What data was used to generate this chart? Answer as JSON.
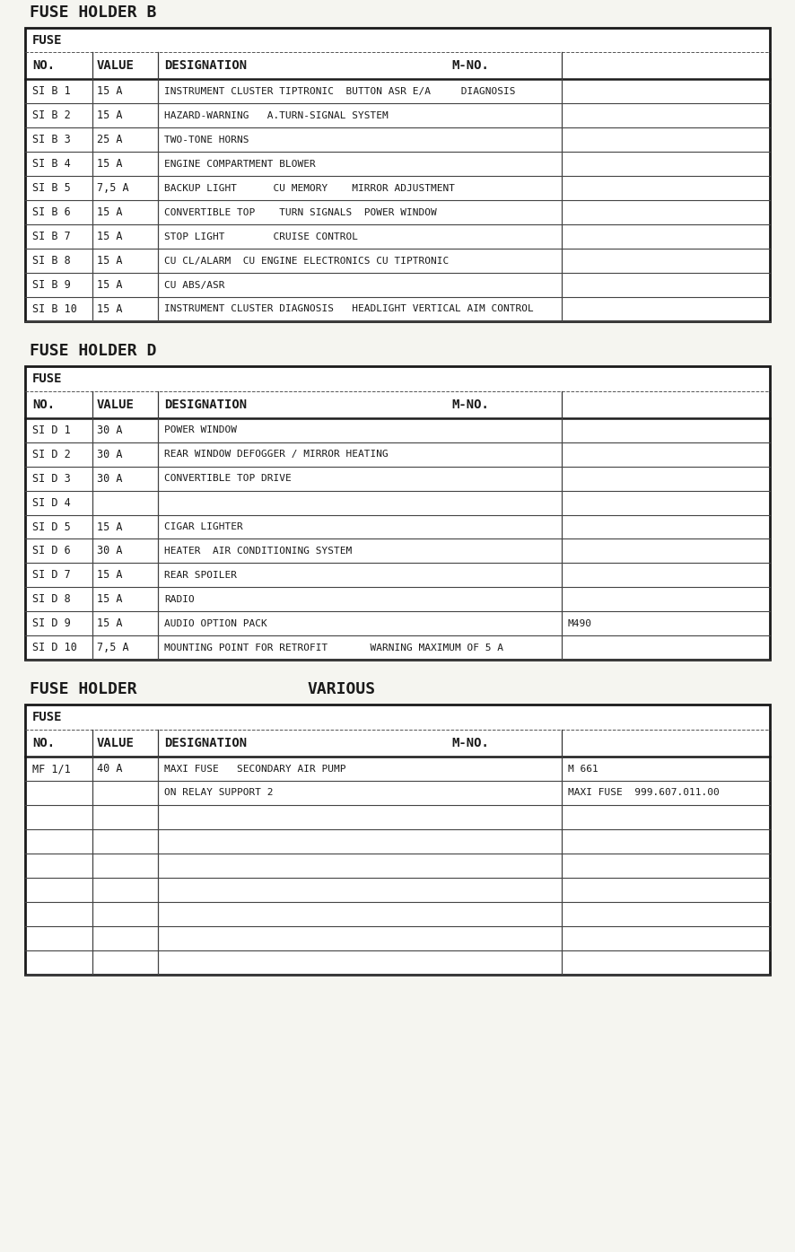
{
  "bg_color": "#f5f5f0",
  "text_color": "#1a1a1a",
  "font_name": "monospace",
  "table_B": {
    "title": "FUSE HOLDER B",
    "fuse_label": "FUSE",
    "col_headers": [
      "NO.",
      "VALUE",
      "DESIGNATION",
      "M-NO."
    ],
    "rows": [
      [
        "SI B 1",
        "15 A",
        "INSTRUMENT CLUSTER TIPTRONIC  BUTTON ASR E/A     DIAGNOSIS",
        ""
      ],
      [
        "SI B 2",
        "15 A",
        "HAZARD-WARNING   A.TURN-SIGNAL SYSTEM",
        ""
      ],
      [
        "SI B 3",
        "25 A",
        "TWO-TONE HORNS",
        ""
      ],
      [
        "SI B 4",
        "15 A",
        "ENGINE COMPARTMENT BLOWER",
        ""
      ],
      [
        "SI B 5",
        "7,5 A",
        "BACKUP LIGHT      CU MEMORY    MIRROR ADJUSTMENT",
        ""
      ],
      [
        "SI B 6",
        "15 A",
        "CONVERTIBLE TOP    TURN SIGNALS  POWER WINDOW",
        ""
      ],
      [
        "SI B 7",
        "15 A",
        "STOP LIGHT        CRUISE CONTROL",
        ""
      ],
      [
        "SI B 8",
        "15 A",
        "CU CL/ALARM  CU ENGINE ELECTRONICS CU TIPTRONIC",
        ""
      ],
      [
        "SI B 9",
        "15 A",
        "CU ABS/ASR",
        ""
      ],
      [
        "SI B 10",
        "15 A",
        "INSTRUMENT CLUSTER DIAGNOSIS   HEADLIGHT VERTICAL AIM CONTROL",
        ""
      ]
    ]
  },
  "table_D": {
    "title": "FUSE HOLDER D",
    "fuse_label": "FUSE",
    "col_headers": [
      "NO.",
      "VALUE",
      "DESIGNATION",
      "M-NO."
    ],
    "rows": [
      [
        "SI D 1",
        "30 A",
        "POWER WINDOW",
        ""
      ],
      [
        "SI D 2",
        "30 A",
        "REAR WINDOW DEFOGGER / MIRROR HEATING",
        ""
      ],
      [
        "SI D 3",
        "30 A",
        "CONVERTIBLE TOP DRIVE",
        ""
      ],
      [
        "SI D 4",
        "",
        "",
        ""
      ],
      [
        "SI D 5",
        "15 A",
        "CIGAR LIGHTER",
        ""
      ],
      [
        "SI D 6",
        "30 A",
        "HEATER  AIR CONDITIONING SYSTEM",
        ""
      ],
      [
        "SI D 7",
        "15 A",
        "REAR SPOILER",
        ""
      ],
      [
        "SI D 8",
        "15 A",
        "RADIO",
        ""
      ],
      [
        "SI D 9",
        "15 A",
        "AUDIO OPTION PACK",
        "M490"
      ],
      [
        "SI D 10",
        "7,5 A",
        "MOUNTING POINT FOR RETROFIT       WARNING MAXIMUM OF 5 A",
        ""
      ]
    ]
  },
  "table_V": {
    "title_left": "FUSE HOLDER",
    "title_right": "VARIOUS",
    "fuse_label": "FUSE",
    "col_headers": [
      "NO.",
      "VALUE",
      "DESIGNATION",
      "M-NO."
    ],
    "rows": [
      [
        "MF 1/1",
        "40 A",
        "MAXI FUSE   SECONDARY AIR PUMP",
        "M 661"
      ],
      [
        "",
        "",
        "ON RELAY SUPPORT 2",
        "MAXI FUSE  999.607.011.00"
      ],
      [
        "",
        "",
        "",
        ""
      ],
      [
        "",
        "",
        "",
        ""
      ],
      [
        "",
        "",
        "",
        ""
      ],
      [
        "",
        "",
        "",
        ""
      ],
      [
        "",
        "",
        "",
        ""
      ],
      [
        "",
        "",
        "",
        ""
      ],
      [
        "",
        "",
        "",
        ""
      ]
    ]
  }
}
